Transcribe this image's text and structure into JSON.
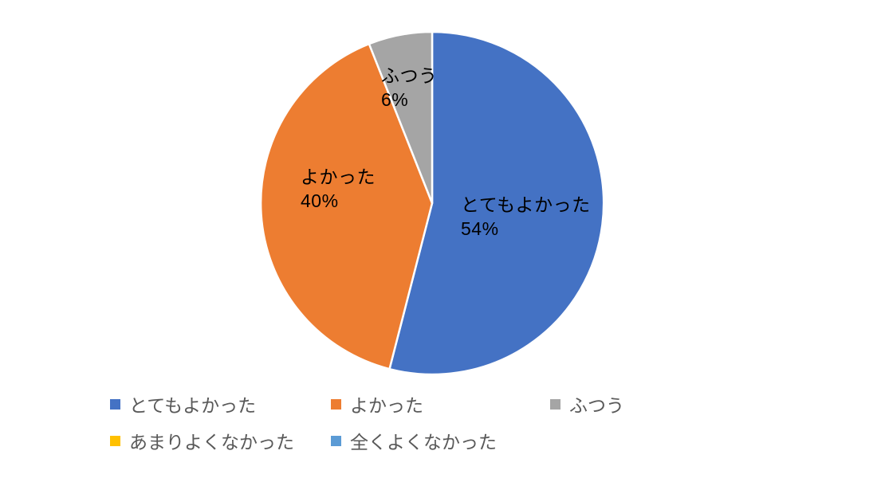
{
  "chart_data": {
    "type": "pie",
    "title": "",
    "categories": [
      "とてもよかった",
      "よかった",
      "ふつう",
      "あまりよくなかった",
      "全くよくなかった"
    ],
    "values": [
      54,
      40,
      6,
      0,
      0
    ],
    "unit": "%",
    "colors": [
      "#4472C4",
      "#ED7D31",
      "#A5A5A5",
      "#FFC000",
      "#5B9BD5"
    ],
    "slice_border_color": "#FFFFFF",
    "start_angle_deg": 0,
    "direction": "clockwise",
    "slice_labels": [
      {
        "name": "とてもよかった",
        "value_text": "54%"
      },
      {
        "name": "よかった",
        "value_text": "40%"
      },
      {
        "name": "ふつう",
        "value_text": "6%"
      }
    ],
    "data_label_color": "#000000",
    "legend": {
      "position": "bottom",
      "text_color": "#595959",
      "entries": [
        "とてもよかった",
        "よかった",
        "ふつう",
        "あまりよくなかった",
        "全くよくなかった"
      ]
    }
  }
}
